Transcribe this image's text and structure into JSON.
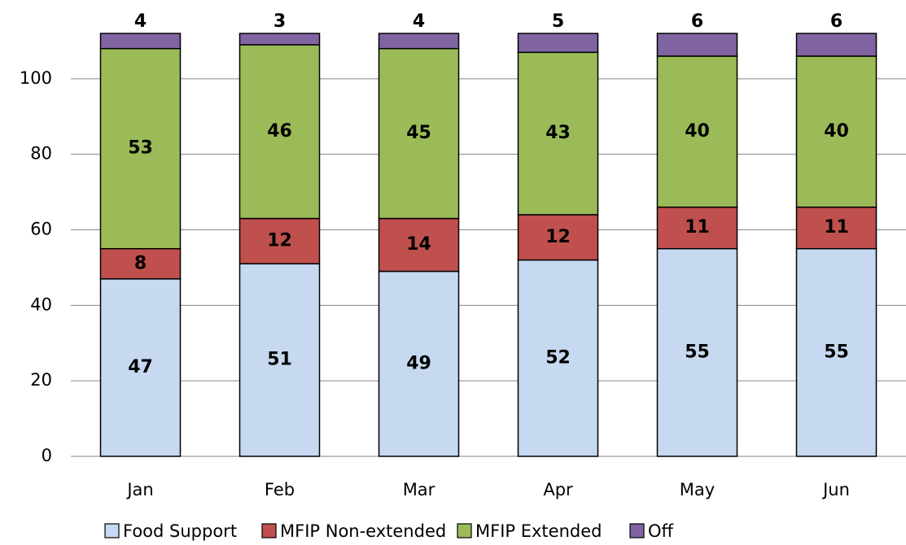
{
  "chart_data": {
    "type": "stacked_bar",
    "categories": [
      "Jan",
      "Feb",
      "Mar",
      "Apr",
      "May",
      "Jun"
    ],
    "series": [
      {
        "name": "Food Support",
        "color": "#c6d9f1",
        "values": [
          47,
          51,
          49,
          52,
          55,
          55
        ]
      },
      {
        "name": "MFIP Non-extended",
        "color": "#c0504d",
        "values": [
          8,
          12,
          14,
          12,
          11,
          11
        ]
      },
      {
        "name": "MFIP Extended",
        "color": "#9bbb59",
        "values": [
          53,
          46,
          45,
          43,
          40,
          40
        ]
      },
      {
        "name": "Off",
        "color": "#8064a2",
        "values": [
          4,
          3,
          4,
          5,
          6,
          6
        ]
      }
    ],
    "ylim": [
      0,
      120
    ],
    "yticks": [
      0,
      20,
      40,
      60,
      80,
      100
    ],
    "grid": true,
    "legend": "bottom"
  }
}
